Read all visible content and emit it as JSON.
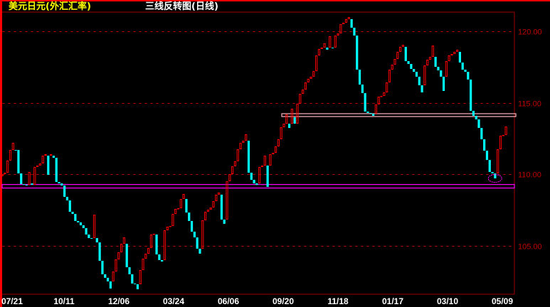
{
  "header": {
    "instrument": "美元日元(外汇汇率)",
    "chart_title": "三线反转图(日线)"
  },
  "colors": {
    "up": "#ff0000",
    "down": "#00ffff",
    "grid": "#a00000",
    "axis_text": "#c00000",
    "support_line": "#ff00ff",
    "resistance_line": "#ffb6c1",
    "annotation": "#ff00ff"
  },
  "chart_data": {
    "type": "bar",
    "variant": "three-line-break",
    "title": "三线反转图(日线)",
    "xlabel": "",
    "ylabel": "",
    "ylim": [
      101.6,
      121.4
    ],
    "grid": true,
    "y_ticks": [
      "120.00",
      "115.00",
      "110.00",
      "105.00"
    ],
    "y_tick_values": [
      120,
      115,
      110,
      105
    ],
    "x_ticks": [
      "07/21",
      "10/11",
      "12/06",
      "03/24",
      "06/06",
      "09/20",
      "11/18",
      "01/17",
      "03/10",
      "05/09"
    ],
    "first_open": 109.85,
    "brick_closes": [
      110.0,
      110.1,
      110.95,
      111.69,
      112.19,
      111.69,
      110.05,
      109.3,
      109.25,
      109.2,
      110.15,
      109.35,
      110.5,
      110.6,
      110.75,
      111.29,
      111.39,
      109.95,
      111.39,
      111.14,
      109.45,
      109.35,
      109.2,
      108.41,
      108.16,
      107.36,
      107.21,
      106.72,
      106.62,
      106.42,
      106.22,
      105.77,
      105.52,
      105.47,
      107.16,
      105.22,
      103.93,
      102.99,
      102.74,
      102.49,
      101.99,
      103.18,
      104.03,
      104.53,
      105.12,
      105.57,
      103.48,
      102.99,
      102.34,
      102.29,
      101.94,
      103.28,
      104.08,
      104.43,
      104.83,
      105.77,
      105.82,
      104.38,
      103.98,
      103.88,
      106.07,
      106.32,
      106.37,
      107.21,
      107.56,
      107.61,
      108.26,
      108.61,
      107.31,
      106.72,
      105.97,
      105.57,
      104.78,
      104.43,
      106.77,
      107.36,
      107.51,
      107.66,
      108.11,
      108.56,
      108.71,
      106.82,
      106.52,
      109.5,
      110.0,
      110.55,
      110.9,
      111.74,
      112.19,
      112.34,
      112.79,
      110.1,
      109.6,
      109.35,
      109.25,
      110.5,
      110.6,
      111.29,
      109.1,
      111.39,
      111.49,
      111.94,
      112.44,
      113.28,
      113.53,
      114.18,
      113.23,
      114.58,
      113.98,
      114.93,
      115.62,
      115.92,
      116.42,
      116.67,
      116.82,
      117.21,
      118.31,
      118.76,
      118.86,
      119.15,
      118.71,
      119.65,
      118.81,
      119.7,
      119.85,
      120.5,
      120.6,
      120.85,
      120.99,
      120.25,
      119.7,
      117.31,
      116.27,
      115.67,
      114.38,
      114.28,
      114.23,
      114.08,
      114.88,
      115.42,
      115.47,
      115.72,
      116.42,
      117.31,
      117.66,
      118.06,
      118.56,
      118.91,
      119.05,
      117.91,
      117.71,
      117.36,
      117.16,
      116.82,
      116.22,
      115.72,
      117.61,
      118.01,
      118.21,
      119.0,
      117.51,
      117.26,
      116.82,
      115.82,
      117.91,
      118.31,
      118.41,
      118.56,
      118.71,
      117.81,
      117.31,
      117.16,
      116.62,
      114.43,
      114.08,
      113.83,
      113.23,
      112.44,
      111.64,
      110.99,
      110.15,
      110.05,
      109.7,
      111.74,
      112.69,
      112.74,
      113.33
    ],
    "reference_lines": [
      {
        "name": "support",
        "value": 109.15
      },
      {
        "name": "resistance",
        "value": 114.13
      }
    ],
    "annotation": {
      "shape": "ellipse",
      "value": 109.8
    }
  }
}
